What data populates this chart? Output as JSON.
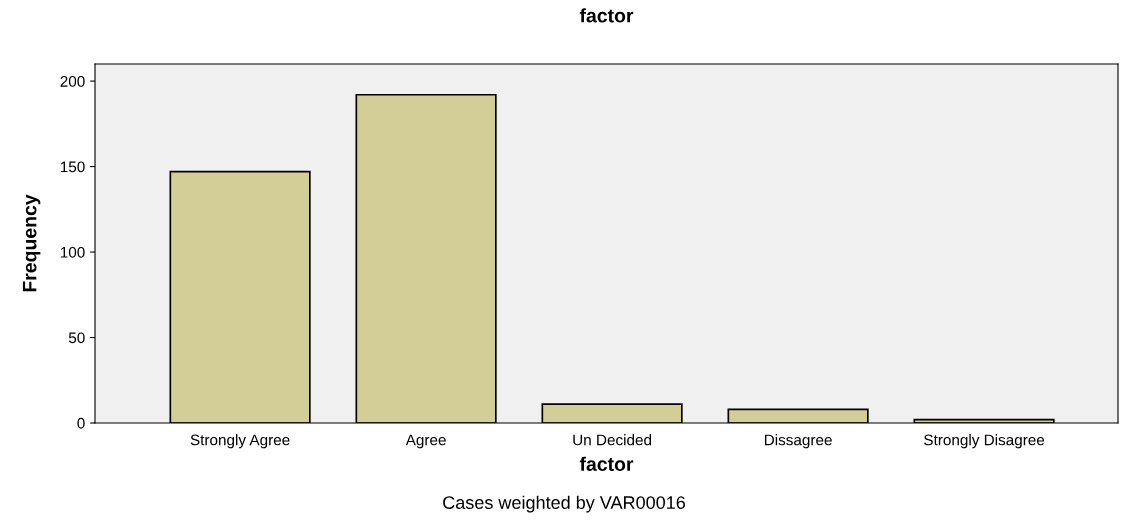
{
  "chart_data": {
    "type": "bar",
    "title": "factor",
    "xlabel": "factor",
    "ylabel": "Frequency",
    "categories": [
      "Strongly Agree",
      "Agree",
      "Un Decided",
      "Dissagree",
      "Strongly Disagree"
    ],
    "values": [
      147,
      192,
      11,
      8,
      2
    ],
    "color": "#d3ce97",
    "ylim": [
      0,
      210
    ],
    "yticks": [
      0,
      50,
      100,
      150,
      200
    ],
    "grid": false,
    "annotations": [
      "Cases weighted by VAR00016"
    ]
  }
}
